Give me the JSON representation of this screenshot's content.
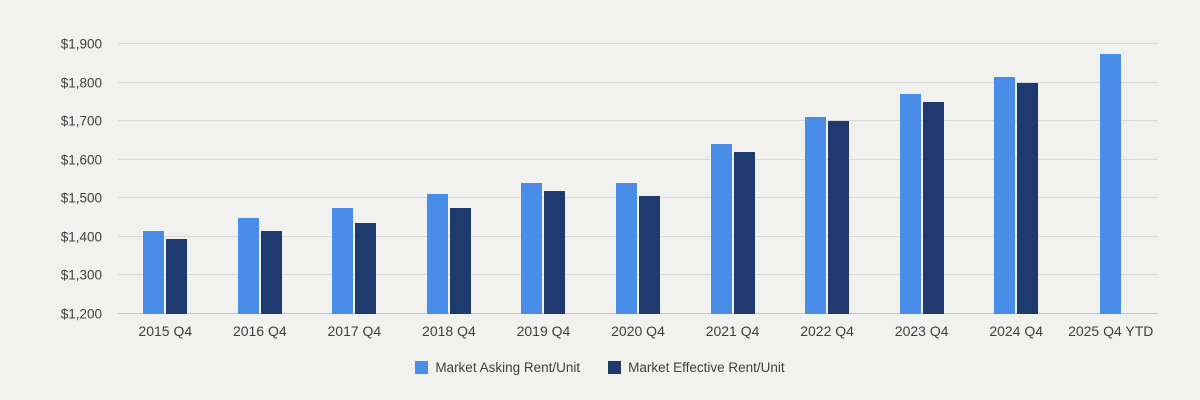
{
  "chart_data": {
    "type": "bar",
    "title": "",
    "categories": [
      "2015 Q4",
      "2016 Q4",
      "2017 Q4",
      "2018 Q4",
      "2019 Q4",
      "2020 Q4",
      "2021 Q4",
      "2022 Q4",
      "2023 Q4",
      "2024 Q4",
      "2025 Q4 YTD"
    ],
    "series": [
      {
        "name": "Market Asking Rent/Unit",
        "color": "#4a8de8",
        "values": [
          1415,
          1450,
          1475,
          1510,
          1540,
          1540,
          1640,
          1710,
          1770,
          1815,
          1875
        ]
      },
      {
        "name": "Market Effective Rent/Unit",
        "color": "#1f3a6e",
        "values": [
          1395,
          1415,
          1435,
          1475,
          1520,
          1505,
          1620,
          1700,
          1750,
          1800,
          null
        ]
      }
    ],
    "ylim": [
      1200,
      1900
    ],
    "ytick_step": 100,
    "ytick_labels": [
      "$1,200",
      "$1,300",
      "$1,400",
      "$1,500",
      "$1,600",
      "$1,700",
      "$1,800",
      "$1,900"
    ],
    "grid": true,
    "legend_position": "bottom",
    "colors": {
      "background": "#f1f1ef",
      "gridline": "#d9d9d9",
      "text": "#3f3f3f"
    }
  }
}
